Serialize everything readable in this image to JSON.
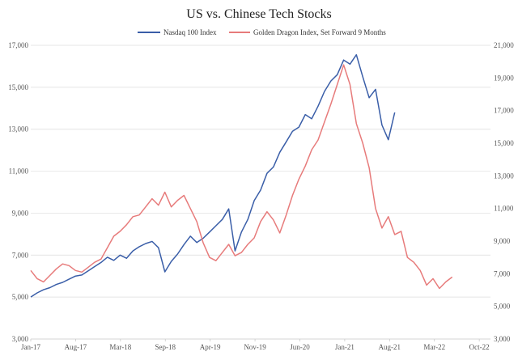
{
  "chart_data": {
    "type": "line",
    "title": "US vs. Chinese Tech Stocks",
    "x_categories": [
      "Jan-17",
      "Aug-17",
      "Mar-18",
      "Sep-18",
      "Apr-19",
      "Nov-19",
      "Jun-20",
      "Jan-21",
      "Aug-21",
      "Mar-22",
      "Oct-22"
    ],
    "x_range": [
      0,
      72
    ],
    "left_axis": {
      "ylim": [
        3000,
        17000
      ],
      "ticks": [
        "3,000",
        "5,000",
        "7,000",
        "9,000",
        "11,000",
        "13,000",
        "15,000",
        "17,000"
      ],
      "tick_values": [
        3000,
        5000,
        7000,
        9000,
        11000,
        13000,
        15000,
        17000
      ]
    },
    "right_axis": {
      "ylim": [
        3000,
        21000
      ],
      "ticks": [
        "3,000",
        "5,000",
        "7,000",
        "9,000",
        "11,000",
        "13,000",
        "15,000",
        "17,000",
        "19,000",
        "21,000"
      ],
      "tick_values": [
        3000,
        5000,
        7000,
        9000,
        11000,
        13000,
        15000,
        17000,
        19000,
        21000
      ]
    },
    "series": [
      {
        "name": "Nasdaq 100 Index",
        "axis": "left",
        "color": "#3a5ea8",
        "points": [
          [
            0,
            5000
          ],
          [
            1,
            5200
          ],
          [
            2,
            5350
          ],
          [
            3,
            5450
          ],
          [
            4,
            5600
          ],
          [
            5,
            5700
          ],
          [
            6,
            5850
          ],
          [
            7,
            6000
          ],
          [
            8,
            6050
          ],
          [
            9,
            6250
          ],
          [
            10,
            6450
          ],
          [
            11,
            6650
          ],
          [
            12,
            6900
          ],
          [
            13,
            6750
          ],
          [
            14,
            7000
          ],
          [
            15,
            6850
          ],
          [
            16,
            7200
          ],
          [
            17,
            7400
          ],
          [
            18,
            7550
          ],
          [
            19,
            7650
          ],
          [
            20,
            7350
          ],
          [
            21,
            6200
          ],
          [
            22,
            6700
          ],
          [
            23,
            7050
          ],
          [
            24,
            7500
          ],
          [
            25,
            7900
          ],
          [
            26,
            7600
          ],
          [
            27,
            7800
          ],
          [
            28,
            8100
          ],
          [
            29,
            8400
          ],
          [
            30,
            8700
          ],
          [
            31,
            9200
          ],
          [
            32,
            7200
          ],
          [
            33,
            8100
          ],
          [
            34,
            8700
          ],
          [
            35,
            9600
          ],
          [
            36,
            10100
          ],
          [
            37,
            10900
          ],
          [
            38,
            11200
          ],
          [
            39,
            11900
          ],
          [
            40,
            12400
          ],
          [
            41,
            12900
          ],
          [
            42,
            13100
          ],
          [
            43,
            13700
          ],
          [
            44,
            13500
          ],
          [
            45,
            14100
          ],
          [
            46,
            14800
          ],
          [
            47,
            15300
          ],
          [
            48,
            15600
          ],
          [
            49,
            16300
          ],
          [
            50,
            16100
          ],
          [
            51,
            16550
          ],
          [
            52,
            15500
          ],
          [
            53,
            14500
          ],
          [
            54,
            14900
          ],
          [
            55,
            13200
          ],
          [
            56,
            12500
          ],
          [
            57,
            13800
          ]
        ]
      },
      {
        "name": "Golden Dragon Index, Set Forward 9 Months",
        "axis": "right",
        "color": "#e77b7b",
        "points": [
          [
            0,
            7200
          ],
          [
            1,
            6700
          ],
          [
            2,
            6500
          ],
          [
            3,
            6900
          ],
          [
            4,
            7300
          ],
          [
            5,
            7600
          ],
          [
            6,
            7500
          ],
          [
            7,
            7200
          ],
          [
            8,
            7100
          ],
          [
            9,
            7400
          ],
          [
            10,
            7700
          ],
          [
            11,
            7900
          ],
          [
            12,
            8600
          ],
          [
            13,
            9300
          ],
          [
            14,
            9600
          ],
          [
            15,
            10000
          ],
          [
            16,
            10500
          ],
          [
            17,
            10600
          ],
          [
            18,
            11100
          ],
          [
            19,
            11600
          ],
          [
            20,
            11200
          ],
          [
            21,
            12000
          ],
          [
            22,
            11100
          ],
          [
            23,
            11500
          ],
          [
            24,
            11800
          ],
          [
            25,
            11000
          ],
          [
            26,
            10200
          ],
          [
            27,
            8900
          ],
          [
            28,
            8000
          ],
          [
            29,
            7800
          ],
          [
            30,
            8300
          ],
          [
            31,
            8800
          ],
          [
            32,
            8100
          ],
          [
            33,
            8300
          ],
          [
            34,
            8800
          ],
          [
            35,
            9200
          ],
          [
            36,
            10200
          ],
          [
            37,
            10800
          ],
          [
            38,
            10300
          ],
          [
            39,
            9500
          ],
          [
            40,
            10600
          ],
          [
            41,
            11800
          ],
          [
            42,
            12800
          ],
          [
            43,
            13600
          ],
          [
            44,
            14600
          ],
          [
            45,
            15200
          ],
          [
            46,
            16300
          ],
          [
            47,
            17400
          ],
          [
            48,
            18600
          ],
          [
            49,
            19800
          ],
          [
            50,
            18600
          ],
          [
            51,
            16200
          ],
          [
            52,
            15000
          ],
          [
            53,
            13500
          ],
          [
            54,
            11000
          ],
          [
            55,
            9800
          ],
          [
            56,
            10500
          ],
          [
            57,
            9400
          ],
          [
            58,
            9600
          ],
          [
            59,
            8000
          ],
          [
            60,
            7700
          ],
          [
            61,
            7200
          ],
          [
            62,
            6300
          ],
          [
            63,
            6700
          ],
          [
            64,
            6100
          ],
          [
            65,
            6500
          ],
          [
            66,
            6800
          ]
        ]
      }
    ]
  }
}
